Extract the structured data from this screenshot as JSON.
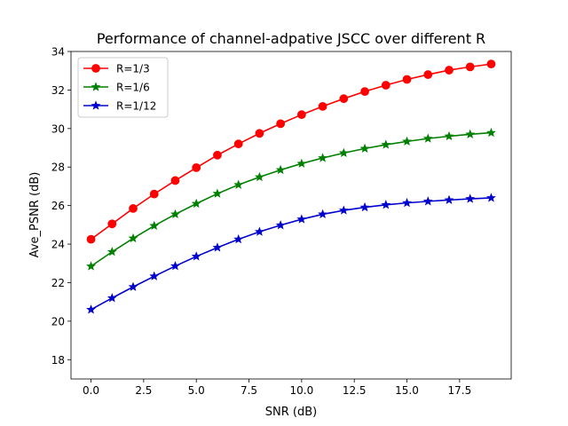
{
  "chart_data": {
    "type": "line",
    "title": "Performance of channel-adpative JSCC over different R",
    "xlabel": "SNR (dB)",
    "ylabel": "Ave_PSNR (dB)",
    "xlim": [
      -0.95,
      19.95
    ],
    "ylim": [
      17,
      34
    ],
    "xticks": [
      0.0,
      2.5,
      5.0,
      7.5,
      10.0,
      12.5,
      15.0,
      17.5
    ],
    "xtick_labels": [
      "0.0",
      "2.5",
      "5.0",
      "7.5",
      "10.0",
      "12.5",
      "15.0",
      "17.5"
    ],
    "yticks": [
      18,
      20,
      22,
      24,
      26,
      28,
      30,
      32,
      34
    ],
    "ytick_labels": [
      "18",
      "20",
      "22",
      "24",
      "26",
      "28",
      "30",
      "32",
      "34"
    ],
    "grid": false,
    "legend_position": "upper-left",
    "x": [
      0,
      1,
      2,
      3,
      4,
      5,
      6,
      7,
      8,
      9,
      10,
      11,
      12,
      13,
      14,
      15,
      16,
      17,
      18,
      19
    ],
    "series": [
      {
        "name": "R=1/3",
        "color": "#ff0000",
        "marker": "circle",
        "values": [
          24.25,
          25.05,
          25.85,
          26.6,
          27.3,
          27.97,
          28.62,
          29.2,
          29.75,
          30.25,
          30.72,
          31.15,
          31.55,
          31.92,
          32.25,
          32.55,
          32.8,
          33.03,
          33.2,
          33.35
        ]
      },
      {
        "name": "R=1/6",
        "color": "#008000",
        "marker": "star",
        "values": [
          22.85,
          23.6,
          24.3,
          24.95,
          25.55,
          26.1,
          26.62,
          27.08,
          27.48,
          27.85,
          28.18,
          28.47,
          28.73,
          28.96,
          29.16,
          29.33,
          29.48,
          29.6,
          29.7,
          29.78
        ]
      },
      {
        "name": "R=1/12",
        "color": "#0000cd",
        "marker": "star",
        "values": [
          20.6,
          21.2,
          21.78,
          22.33,
          22.86,
          23.36,
          23.82,
          24.25,
          24.64,
          24.98,
          25.29,
          25.55,
          25.75,
          25.91,
          26.04,
          26.14,
          26.22,
          26.29,
          26.35,
          26.4
        ]
      }
    ]
  }
}
